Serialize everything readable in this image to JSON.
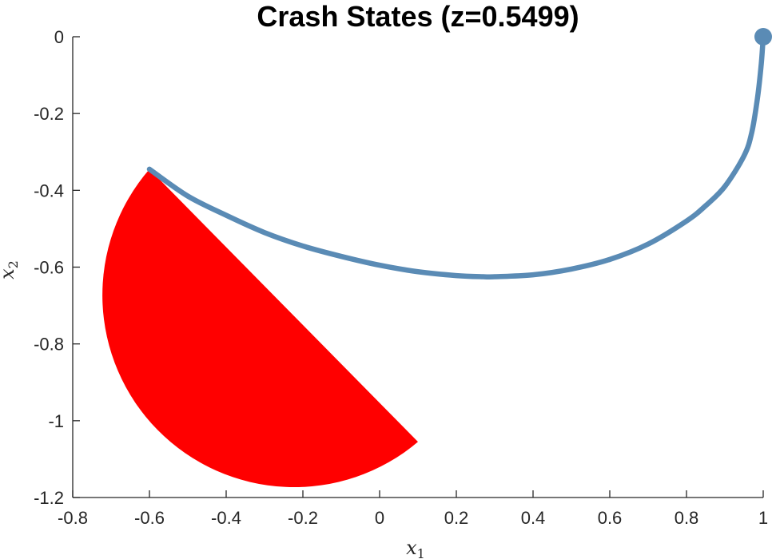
{
  "chart_data": {
    "type": "line",
    "title": "Crash States (z=0.5499)",
    "xlabel": "x",
    "xlabel_sub": "1",
    "ylabel": "x",
    "ylabel_sub": "2",
    "xlim": [
      -0.8,
      1
    ],
    "ylim": [
      -1.2,
      0
    ],
    "xticks": [
      -0.8,
      -0.6,
      -0.4,
      -0.2,
      0,
      0.2,
      0.4,
      0.6,
      0.8,
      1
    ],
    "xtick_labels": [
      "-0.8",
      "-0.6",
      "-0.4",
      "-0.2",
      "0",
      "0.2",
      "0.4",
      "0.6",
      "0.8",
      "1"
    ],
    "yticks": [
      0,
      -0.2,
      -0.4,
      -0.6,
      -0.8,
      -1,
      -1.2
    ],
    "ytick_labels": [
      "0",
      "-0.2",
      "-0.4",
      "-0.6",
      "-0.8",
      "-1",
      "-1.2"
    ],
    "grid": false,
    "colors": {
      "trajectory": "#5a8bb5",
      "region": "#ff0000",
      "axis": "#262626"
    },
    "series": [
      {
        "x": [
          1.0,
          0.995,
          0.985,
          0.97,
          0.95,
          0.9,
          0.85,
          0.8,
          0.7,
          0.6,
          0.5,
          0.4,
          0.3,
          0.27,
          0.2,
          0.1,
          0.0,
          -0.1,
          -0.2,
          -0.3,
          -0.4,
          -0.5,
          -0.6
        ],
        "y": [
          0.0,
          -0.07,
          -0.16,
          -0.25,
          -0.31,
          -0.39,
          -0.44,
          -0.48,
          -0.54,
          -0.58,
          -0.605,
          -0.62,
          -0.625,
          -0.625,
          -0.622,
          -0.612,
          -0.595,
          -0.572,
          -0.545,
          -0.51,
          -0.465,
          -0.415,
          -0.345
        ]
      }
    ],
    "start_marker": {
      "x": 1.0,
      "y": 0.0
    },
    "crash_region": {
      "shape": "half-disc",
      "center": [
        -0.25,
        -0.7
      ],
      "radius": 0.5,
      "chord_start": [
        -0.6,
        -0.345
      ],
      "chord_end": [
        0.1,
        -1.055
      ]
    }
  }
}
